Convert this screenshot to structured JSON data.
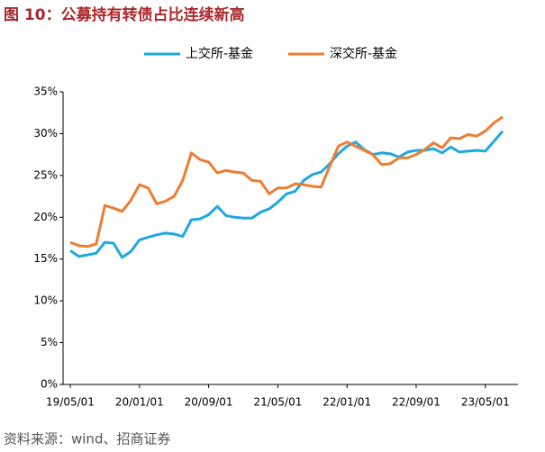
{
  "chart_data": {
    "type": "line",
    "title": "图 10：公募持有转债占比连续新高",
    "source": "资料来源：wind、招商证券",
    "categories": [
      "19/05/01",
      null,
      null,
      null,
      null,
      null,
      null,
      null,
      "20/01/01",
      null,
      null,
      null,
      null,
      null,
      null,
      null,
      "20/09/01",
      null,
      null,
      null,
      null,
      null,
      null,
      null,
      "21/05/01",
      null,
      null,
      null,
      null,
      null,
      null,
      null,
      "22/01/01",
      null,
      null,
      null,
      null,
      null,
      null,
      null,
      "22/09/01",
      null,
      null,
      null,
      null,
      null,
      null,
      null,
      "23/05/01",
      null,
      null
    ],
    "series": [
      {
        "name": "上交所-基金",
        "color": "#1fa8e0",
        "values": [
          16.0,
          15.3,
          15.5,
          15.7,
          17.0,
          16.9,
          15.2,
          15.9,
          17.3,
          17.6,
          17.9,
          18.1,
          18.0,
          17.7,
          19.7,
          19.8,
          20.3,
          21.3,
          20.2,
          20.0,
          19.9,
          19.9,
          20.6,
          21.0,
          21.8,
          22.8,
          23.1,
          24.4,
          25.1,
          25.4,
          26.4,
          27.6,
          28.5,
          29.0,
          28.1,
          27.5,
          27.7,
          27.6,
          27.2,
          27.8,
          28.0,
          28.0,
          28.2,
          27.7,
          28.4,
          27.8,
          27.9,
          28.0,
          27.9,
          29.1,
          30.3
        ]
      },
      {
        "name": "深交所-基金",
        "color": "#ed7d31",
        "values": [
          17.0,
          16.6,
          16.5,
          16.8,
          21.4,
          21.1,
          20.7,
          22.0,
          23.9,
          23.5,
          21.6,
          21.9,
          22.5,
          24.4,
          27.7,
          26.9,
          26.6,
          25.3,
          25.6,
          25.4,
          25.3,
          24.4,
          24.3,
          22.8,
          23.5,
          23.5,
          24.0,
          23.9,
          23.7,
          23.6,
          26.1,
          28.5,
          29.0,
          28.5,
          28.0,
          27.5,
          26.3,
          26.4,
          27.1,
          27.1,
          27.5,
          28.1,
          28.9,
          28.3,
          29.5,
          29.4,
          29.9,
          29.7,
          30.3,
          31.3,
          32.0
        ]
      }
    ],
    "ylim": [
      0,
      35
    ],
    "yticks": [
      {
        "value": 0,
        "label": "0%"
      },
      {
        "value": 5,
        "label": "5%"
      },
      {
        "value": 10,
        "label": "10%"
      },
      {
        "value": 15,
        "label": "15%"
      },
      {
        "value": 20,
        "label": "20%"
      },
      {
        "value": 25,
        "label": "25%"
      },
      {
        "value": 30,
        "label": "30%"
      },
      {
        "value": 35,
        "label": "35%"
      }
    ],
    "legend": "top"
  }
}
